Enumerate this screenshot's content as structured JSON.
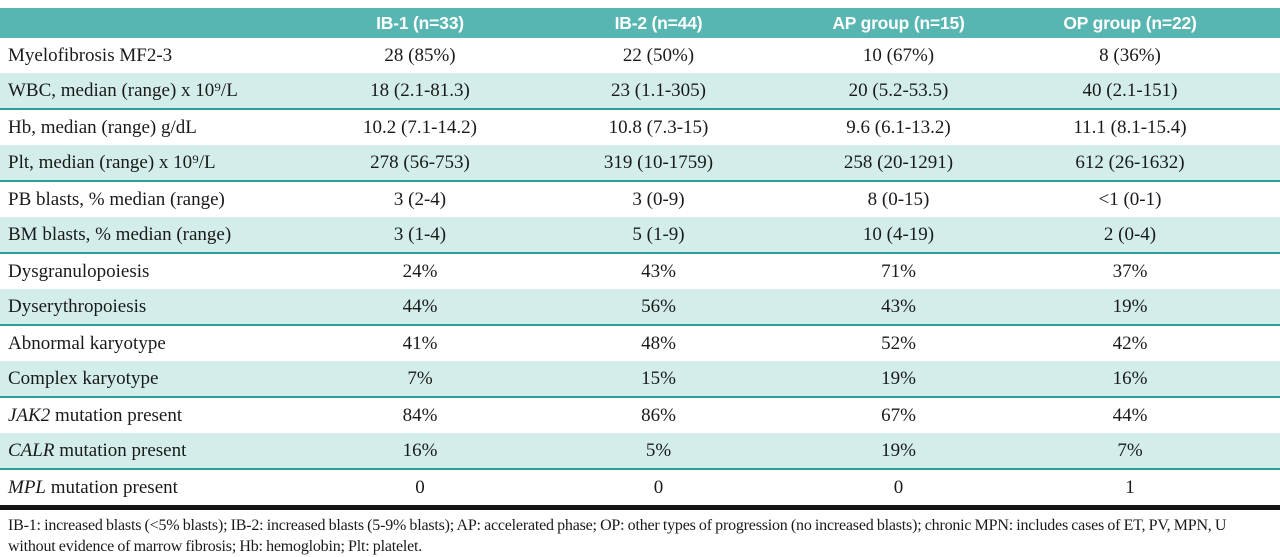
{
  "colors": {
    "header_teal": "#57b5b2",
    "row_teal": "#d3edeb",
    "divider_teal": "#2f9f9d",
    "rule_black": "#141414"
  },
  "table": {
    "columns": [
      "",
      "IB-1 (n=33)",
      "IB-2 (n=44)",
      "AP group (n=15)",
      "OP group (n=22)"
    ],
    "rows": [
      {
        "gene": "",
        "label": "Myelofibrosis MF2-3",
        "shaded": false,
        "values": [
          "28 (85%)",
          "22 (50%)",
          "10 (67%)",
          "8 (36%)"
        ]
      },
      {
        "gene": "",
        "label": "WBC, median (range) x 10⁹/L",
        "shaded": true,
        "values": [
          "18 (2.1-81.3)",
          "23 (1.1-305)",
          "20 (5.2-53.5)",
          "40 (2.1-151)"
        ]
      },
      {
        "gene": "",
        "label": "Hb, median (range) g/dL",
        "shaded": false,
        "values": [
          "10.2 (7.1-14.2)",
          "10.8 (7.3-15)",
          "9.6 (6.1-13.2)",
          "11.1 (8.1-15.4)"
        ]
      },
      {
        "gene": "",
        "label": "Plt, median (range) x 10⁹/L",
        "shaded": true,
        "values": [
          "278 (56-753)",
          "319 (10-1759)",
          "258 (20-1291)",
          "612 (26-1632)"
        ]
      },
      {
        "gene": "",
        "label": "PB blasts, % median (range)",
        "shaded": false,
        "values": [
          "3 (2-4)",
          "3 (0-9)",
          "8 (0-15)",
          "<1 (0-1)"
        ]
      },
      {
        "gene": "",
        "label": "BM blasts, % median (range)",
        "shaded": true,
        "values": [
          "3 (1-4)",
          "5 (1-9)",
          "10 (4-19)",
          "2 (0-4)"
        ]
      },
      {
        "gene": "",
        "label": "Dysgranulopoiesis",
        "shaded": false,
        "values": [
          "24%",
          "43%",
          "71%",
          "37%"
        ]
      },
      {
        "gene": "",
        "label": "Dyserythropoiesis",
        "shaded": true,
        "values": [
          "44%",
          "56%",
          "43%",
          "19%"
        ]
      },
      {
        "gene": "",
        "label": "Abnormal karyotype",
        "shaded": false,
        "values": [
          "41%",
          "48%",
          "52%",
          "42%"
        ]
      },
      {
        "gene": "",
        "label": "Complex karyotype",
        "shaded": true,
        "values": [
          "7%",
          "15%",
          "19%",
          "16%"
        ]
      },
      {
        "gene": "JAK2",
        "label": "mutation present",
        "shaded": false,
        "values": [
          "84%",
          "86%",
          "67%",
          "44%"
        ]
      },
      {
        "gene": "CALR",
        "label": "mutation present",
        "shaded": true,
        "values": [
          "16%",
          "5%",
          "19%",
          "7%"
        ]
      },
      {
        "gene": "MPL",
        "label": "mutation present",
        "shaded": false,
        "values": [
          "0",
          "0",
          "0",
          "1"
        ]
      }
    ],
    "footnote": "IB-1: increased blasts (<5% blasts); IB-2: increased blasts (5-9% blasts); AP: accelerated phase; OP: other types of progression (no increased blasts); chronic MPN: includes cases of ET, PV, MPN, U without evidence of marrow fibrosis; Hb: hemoglobin; Plt: platelet."
  }
}
